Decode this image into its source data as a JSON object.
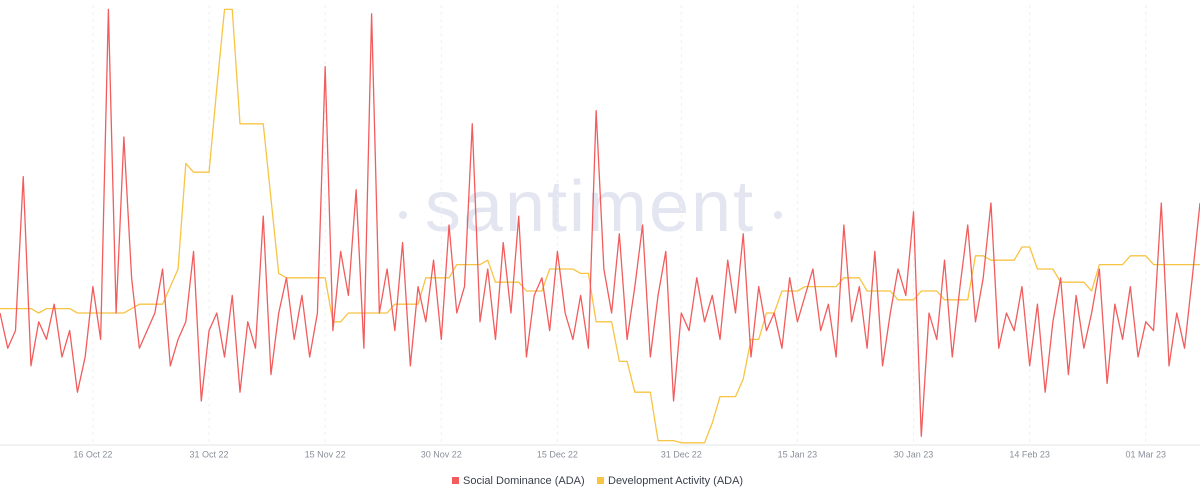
{
  "chart_data": {
    "type": "line",
    "watermark": "santiment",
    "categories": [
      null,
      null,
      null,
      null,
      null,
      null,
      null,
      null,
      null,
      null,
      null,
      null,
      "16 Oct 22",
      null,
      null,
      null,
      null,
      null,
      null,
      null,
      null,
      null,
      null,
      null,
      null,
      null,
      null,
      "31 Oct 22",
      null,
      null,
      null,
      null,
      null,
      null,
      null,
      null,
      null,
      null,
      null,
      null,
      null,
      null,
      "15 Nov 22",
      null,
      null,
      null,
      null,
      null,
      null,
      null,
      null,
      null,
      null,
      null,
      null,
      null,
      null,
      "30 Nov 22",
      null,
      null,
      null,
      null,
      null,
      null,
      null,
      null,
      null,
      null,
      null,
      null,
      null,
      null,
      "15 Dec 22",
      null,
      null,
      null,
      null,
      null,
      null,
      null,
      null,
      null,
      null,
      null,
      null,
      null,
      null,
      null,
      "31 Dec 22",
      null,
      null,
      null,
      null,
      null,
      null,
      null,
      null,
      null,
      null,
      null,
      null,
      null,
      null,
      "15 Jan 23",
      null,
      null,
      null,
      null,
      null,
      null,
      null,
      null,
      null,
      null,
      null,
      null,
      null,
      null,
      "30 Jan 23",
      null,
      null,
      null,
      null,
      null,
      null,
      null,
      null,
      null,
      null,
      null,
      null,
      null,
      null,
      "14 Feb 23",
      null,
      null,
      null,
      null,
      null,
      null,
      null,
      null,
      null,
      null,
      null,
      null,
      null,
      null,
      "01 Mar 23",
      null,
      null,
      null,
      null,
      null,
      null,
      null
    ],
    "series": [
      {
        "name": "Social Dominance (ADA)",
        "color": "#f25c5c",
        "values": [
          30,
          22,
          26,
          61,
          18,
          28,
          24,
          32,
          20,
          26,
          12,
          20,
          36,
          24,
          99,
          30,
          70,
          38,
          22,
          26,
          30,
          40,
          18,
          24,
          28,
          44,
          10,
          26,
          30,
          20,
          34,
          12,
          28,
          22,
          52,
          16,
          30,
          38,
          24,
          34,
          20,
          30,
          86,
          26,
          44,
          34,
          58,
          22,
          98,
          30,
          40,
          26,
          46,
          18,
          36,
          28,
          42,
          24,
          50,
          30,
          36,
          73,
          28,
          40,
          24,
          46,
          30,
          52,
          20,
          34,
          38,
          26,
          44,
          30,
          24,
          34,
          22,
          76,
          40,
          30,
          48,
          24,
          36,
          50,
          20,
          34,
          44,
          10,
          30,
          26,
          38,
          28,
          34,
          24,
          42,
          30,
          48,
          20,
          36,
          26,
          30,
          22,
          38,
          28,
          34,
          40,
          26,
          32,
          20,
          50,
          28,
          36,
          22,
          44,
          18,
          30,
          40,
          34,
          53,
          2,
          30,
          24,
          42,
          20,
          36,
          50,
          28,
          38,
          55,
          22,
          30,
          26,
          36,
          18,
          32,
          12,
          28,
          38,
          16,
          34,
          22,
          30,
          40,
          14,
          32,
          24,
          36,
          20,
          28,
          26,
          55,
          18,
          30,
          22,
          38,
          55
        ]
      },
      {
        "name": "Development Activity (ADA)",
        "color": "#f7c444",
        "values": [
          31,
          31,
          31,
          31,
          31,
          30,
          31,
          31,
          31,
          31,
          30,
          30,
          30,
          30,
          30,
          30,
          30,
          31,
          32,
          32,
          32,
          32,
          36,
          40,
          64,
          62,
          62,
          62,
          81,
          99,
          99,
          73,
          73,
          73,
          73,
          56,
          39,
          38,
          38,
          38,
          38,
          38,
          38,
          28,
          28,
          30,
          30,
          30,
          30,
          30,
          30,
          32,
          32,
          32,
          32,
          38,
          38,
          38,
          38,
          41,
          41,
          41,
          41,
          42,
          37,
          37,
          37,
          37,
          35,
          35,
          35,
          40,
          40,
          40,
          40,
          39,
          39,
          28,
          28,
          28,
          19,
          19,
          12,
          12,
          12,
          1,
          1,
          1,
          0.5,
          0.5,
          0.5,
          0.5,
          5,
          11,
          11,
          11,
          15,
          24,
          24,
          30,
          30,
          35,
          35,
          35,
          36,
          36,
          36,
          36,
          36,
          38,
          38,
          38,
          35,
          35,
          35,
          35,
          33,
          33,
          33,
          35,
          35,
          35,
          33,
          33,
          33,
          33,
          43,
          43,
          42,
          42,
          42,
          42,
          45,
          45,
          40,
          40,
          40,
          37,
          37,
          37,
          37,
          35,
          41,
          41,
          41,
          41,
          43,
          43,
          43,
          41,
          41,
          41,
          41,
          41,
          41,
          41
        ]
      }
    ],
    "ylim": [
      0,
      100
    ],
    "grid": true
  }
}
